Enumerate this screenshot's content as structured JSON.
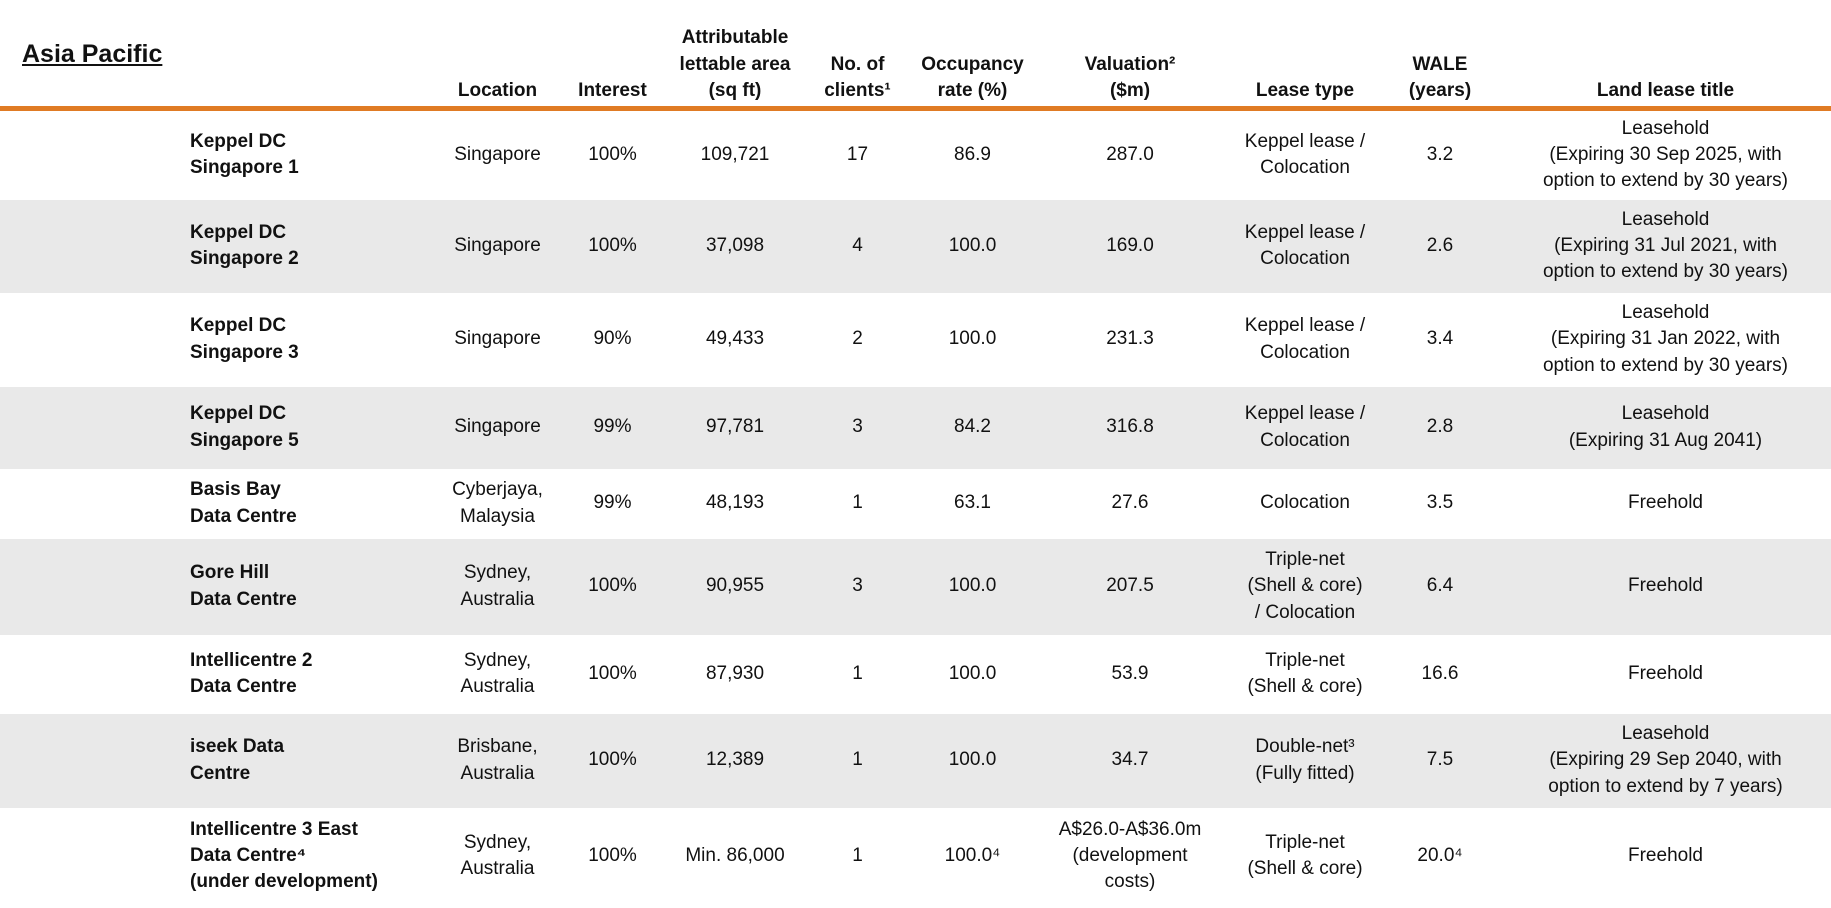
{
  "header": {
    "title": "Asia Pacific"
  },
  "table": {
    "columns": [
      "",
      "Location",
      "Interest",
      "Attributable\nlettable area\n(sq ft)",
      "No. of\nclients¹",
      "Occupancy\nrate (%)",
      "Valuation²\n($m)",
      "Lease type",
      "WALE\n(years)",
      "Land lease title"
    ],
    "rows": [
      [
        "Keppel DC\nSingapore 1",
        "Singapore",
        "100%",
        "109,721",
        "17",
        "86.9",
        "287.0",
        "Keppel lease /\nColocation",
        "3.2",
        "Leasehold\n(Expiring 30 Sep 2025, with\noption to extend by 30 years)"
      ],
      [
        "Keppel DC\nSingapore 2",
        "Singapore",
        "100%",
        "37,098",
        "4",
        "100.0",
        "169.0",
        "Keppel lease /\nColocation",
        "2.6",
        "Leasehold\n(Expiring 31 Jul 2021, with\noption to extend by 30 years)"
      ],
      [
        "Keppel DC\nSingapore 3",
        "Singapore",
        "90%",
        "49,433",
        "2",
        "100.0",
        "231.3",
        "Keppel lease /\nColocation",
        "3.4",
        "Leasehold\n(Expiring 31 Jan 2022, with\noption to extend by 30 years)"
      ],
      [
        "Keppel DC\nSingapore 5",
        "Singapore",
        "99%",
        "97,781",
        "3",
        "84.2",
        "316.8",
        "Keppel lease /\nColocation",
        "2.8",
        "Leasehold\n(Expiring 31 Aug 2041)"
      ],
      [
        "Basis Bay\nData Centre",
        "Cyberjaya,\nMalaysia",
        "99%",
        "48,193",
        "1",
        "63.1",
        "27.6",
        "Colocation",
        "3.5",
        "Freehold"
      ],
      [
        "Gore Hill\nData Centre",
        "Sydney,\nAustralia",
        "100%",
        "90,955",
        "3",
        "100.0",
        "207.5",
        "Triple-net\n(Shell & core)\n/ Colocation",
        "6.4",
        "Freehold"
      ],
      [
        "Intellicentre 2\nData Centre",
        "Sydney,\nAustralia",
        "100%",
        "87,930",
        "1",
        "100.0",
        "53.9",
        "Triple-net\n(Shell & core)",
        "16.6",
        "Freehold"
      ],
      [
        "iseek Data\nCentre",
        "Brisbane,\nAustralia",
        "100%",
        "12,389",
        "1",
        "100.0",
        "34.7",
        "Double-net³\n(Fully fitted)",
        "7.5",
        "Leasehold\n(Expiring 29 Sep 2040, with\noption to extend by 7 years)"
      ],
      [
        "Intellicentre 3 East\nData Centre⁴\n(under development)",
        "Sydney,\nAustralia",
        "100%",
        "Min. 86,000",
        "1",
        "100.0⁴",
        "A$26.0-A$36.0m\n(development\ncosts)",
        "Triple-net\n(Shell & core)",
        "20.0⁴",
        "Freehold"
      ]
    ]
  }
}
